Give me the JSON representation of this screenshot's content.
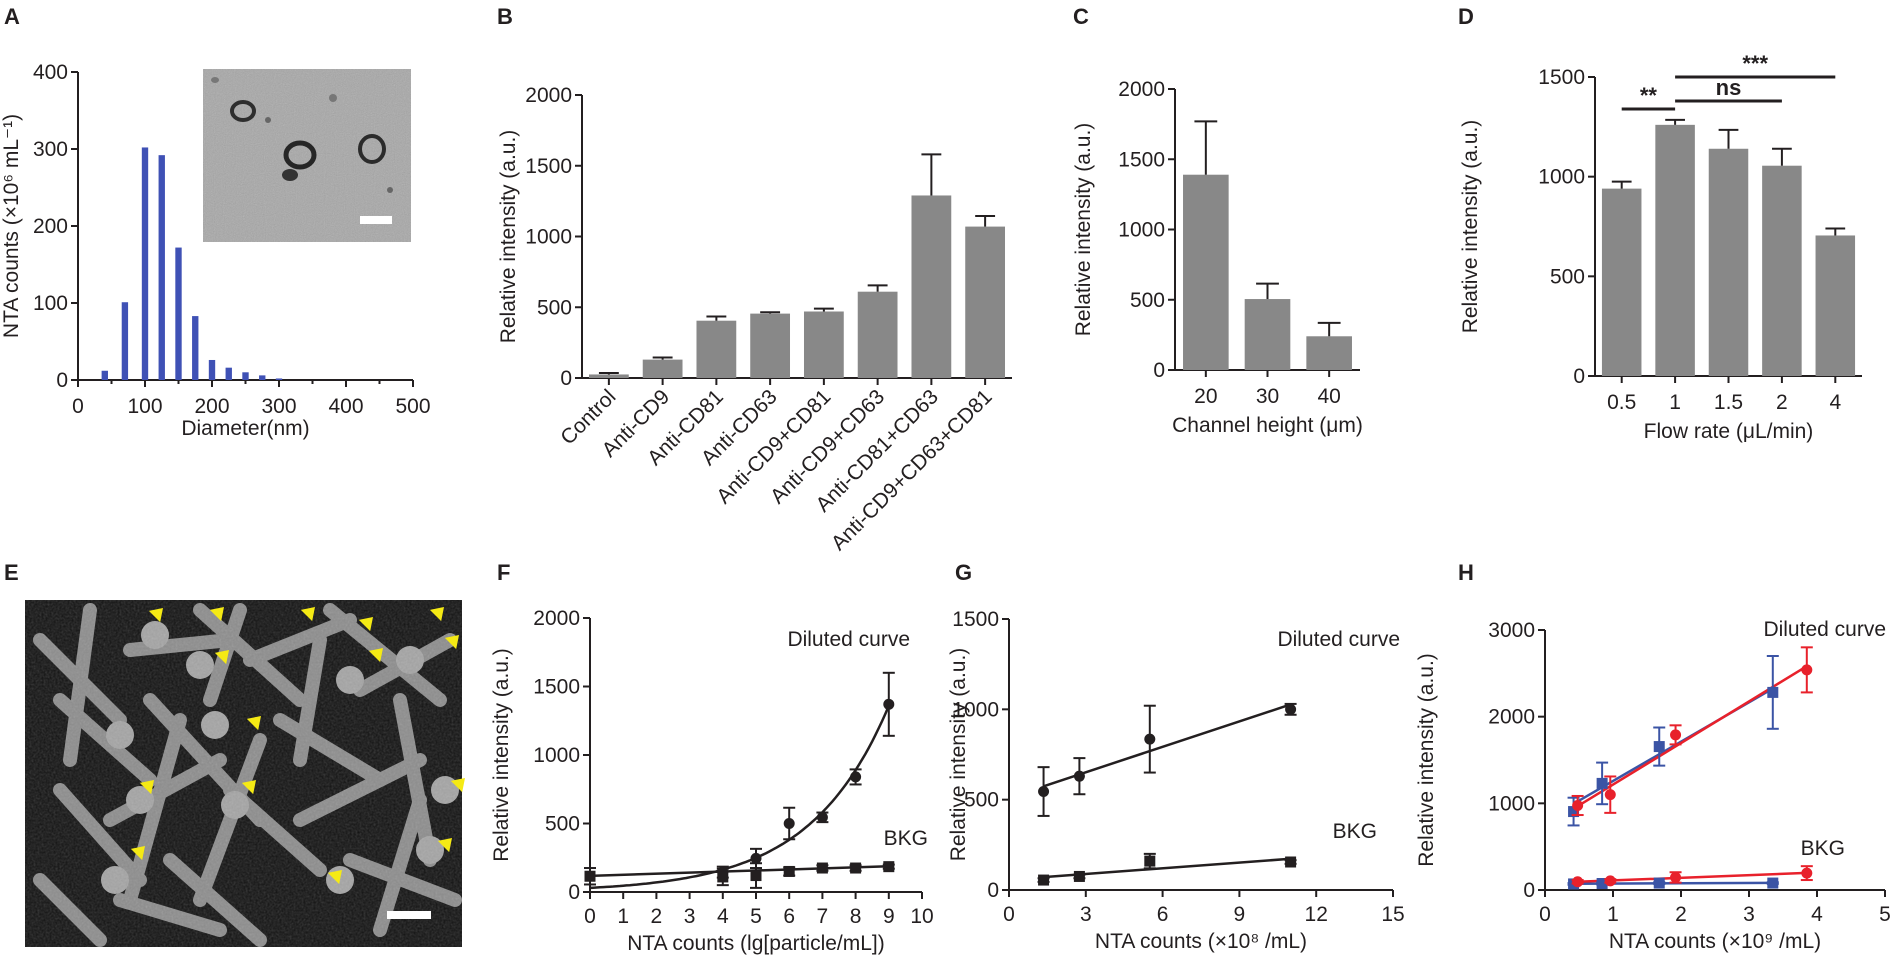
{
  "panel_labels": [
    "A",
    "B",
    "C",
    "D",
    "E",
    "F",
    "G",
    "H"
  ],
  "colors": {
    "blue_bar": "#3f51b5",
    "gray_bar": "#888888",
    "red": "#e8212b",
    "blue": "#3b54a5",
    "black": "#231f20",
    "arrow": "#f5ea14"
  },
  "images": [
    {
      "panel": "A",
      "icon": "tem-exosome-micrograph",
      "scalebar": true
    },
    {
      "panel": "E",
      "icon": "sem-nanowire-micrograph",
      "scalebar": true
    }
  ],
  "chart_data": [
    {
      "panel": "A",
      "type": "bar",
      "xlabel": "Diameter(nm)",
      "ylabel": "NTA counts (×10⁶ mL⁻¹)",
      "xlim": [
        0,
        500
      ],
      "ylim": [
        0,
        400
      ],
      "xticks": [
        "0",
        "100",
        "200",
        "300",
        "400",
        "500"
      ],
      "yticks": [
        "0",
        "100",
        "200",
        "300",
        "400"
      ],
      "x": [
        40,
        70,
        100,
        125,
        150,
        175,
        200,
        225,
        250,
        275,
        300
      ],
      "values": [
        12,
        101,
        302,
        292,
        172,
        83,
        26,
        16,
        10,
        6,
        2
      ]
    },
    {
      "panel": "B",
      "type": "bar",
      "xlabel": "",
      "ylabel": "Relative intensity (a.u.)",
      "ylim": [
        0,
        2000
      ],
      "yticks": [
        "0",
        "500",
        "1000",
        "1500",
        "2000"
      ],
      "categories": [
        "Control",
        "Anti-CD9",
        "Anti-CD81",
        "Anti-CD63",
        "Anti-CD9+CD81",
        "Anti-CD9+CD63",
        "Anti-CD81+CD63",
        "Anti-CD9+CD63+CD81"
      ],
      "values": [
        25,
        130,
        405,
        455,
        470,
        610,
        1290,
        1070
      ],
      "errors": [
        10,
        15,
        30,
        10,
        20,
        45,
        290,
        75
      ]
    },
    {
      "panel": "C",
      "type": "bar",
      "xlabel": "Channel height (μm)",
      "ylabel": "Relative intensity (a.u.)",
      "ylim": [
        0,
        2000
      ],
      "yticks": [
        "0",
        "500",
        "1000",
        "1500",
        "2000"
      ],
      "categories": [
        "20",
        "30",
        "40"
      ],
      "values": [
        1390,
        505,
        240
      ],
      "errors": [
        380,
        110,
        95
      ]
    },
    {
      "panel": "D",
      "type": "bar",
      "xlabel": "Flow rate (μL/min)",
      "ylabel": "Relative intensity (a.u.)",
      "ylim": [
        0,
        1500
      ],
      "yticks": [
        "0",
        "500",
        "1000",
        "1500"
      ],
      "categories": [
        "0.5",
        "1",
        "1.5",
        "2",
        "4"
      ],
      "values": [
        940,
        1260,
        1140,
        1055,
        705
      ],
      "errors": [
        35,
        25,
        95,
        85,
        35
      ],
      "annotations": [
        {
          "text": "**",
          "from": "0.5",
          "to": "1"
        },
        {
          "text": "ns",
          "from": "1",
          "to": "2"
        },
        {
          "text": "***",
          "from": "1",
          "to": "4"
        }
      ]
    },
    {
      "panel": "F",
      "type": "scatter",
      "xlabel": "NTA counts (lg[particle/mL])",
      "ylabel": "Relative intensity (a.u.)",
      "xlim": [
        0,
        10
      ],
      "ylim": [
        0,
        2000
      ],
      "xticks": [
        "0",
        "1",
        "2",
        "3",
        "4",
        "5",
        "6",
        "7",
        "8",
        "9",
        "10"
      ],
      "yticks": [
        "0",
        "500",
        "1000",
        "1500",
        "2000"
      ],
      "annotations": [
        "Diluted curve",
        "BKG"
      ],
      "series": [
        {
          "name": "Diluted curve",
          "x": [
            4,
            5,
            6,
            7,
            8,
            9
          ],
          "y": [
            145,
            245,
            500,
            545,
            840,
            1370
          ],
          "errors": [
            40,
            70,
            115,
            35,
            55,
            230
          ]
        },
        {
          "name": "BKG",
          "x": [
            0,
            4,
            5,
            6,
            7,
            8,
            9
          ],
          "y": [
            115,
            110,
            120,
            150,
            175,
            175,
            185
          ],
          "errors": [
            60,
            60,
            90,
            30,
            20,
            20,
            15
          ]
        }
      ]
    },
    {
      "panel": "G",
      "type": "scatter",
      "xlabel": "NTA counts (×10⁸ /mL)",
      "ylabel": "Relative intensity (a.u.)",
      "xlim": [
        0,
        15
      ],
      "ylim": [
        0,
        1500
      ],
      "xticks": [
        "0",
        "3",
        "6",
        "9",
        "12",
        "15"
      ],
      "yticks": [
        "0",
        "500",
        "1000",
        "1500"
      ],
      "annotations": [
        "Diluted curve",
        "BKG"
      ],
      "series": [
        {
          "name": "Diluted curve",
          "x": [
            1.35,
            2.75,
            5.5,
            11
          ],
          "y": [
            545,
            630,
            835,
            1000
          ],
          "errors": [
            135,
            100,
            185,
            30
          ]
        },
        {
          "name": "BKG",
          "x": [
            1.35,
            2.75,
            5.5,
            11
          ],
          "y": [
            55,
            75,
            160,
            155
          ],
          "errors": [
            10,
            10,
            40,
            10
          ]
        }
      ]
    },
    {
      "panel": "H",
      "type": "scatter",
      "xlabel": "NTA counts (×10⁹ /mL)",
      "ylabel": "Relative intensity (a.u.)",
      "xlim": [
        0,
        5
      ],
      "ylim": [
        0,
        3000
      ],
      "xticks": [
        "0",
        "1",
        "2",
        "3",
        "4",
        "5"
      ],
      "yticks": [
        "0",
        "1000",
        "2000",
        "3000"
      ],
      "annotations": [
        "Diluted curve",
        "BKG"
      ],
      "series": [
        {
          "name": "Diluted curve (red)",
          "color": "#e8212b",
          "x": [
            0.48,
            0.96,
            1.92,
            3.85
          ],
          "y": [
            975,
            1100,
            1790,
            2540
          ],
          "errors": [
            110,
            210,
            110,
            260
          ]
        },
        {
          "name": "Diluted curve (blue)",
          "color": "#3b54a5",
          "x": [
            0.42,
            0.84,
            1.68,
            3.35
          ],
          "y": [
            905,
            1230,
            1655,
            2280
          ],
          "errors": [
            160,
            240,
            220,
            420
          ]
        },
        {
          "name": "BKG (red)",
          "color": "#e8212b",
          "x": [
            0.48,
            0.96,
            1.92,
            3.85
          ],
          "y": [
            95,
            105,
            145,
            195
          ],
          "errors": [
            20,
            20,
            60,
            80
          ]
        },
        {
          "name": "BKG (blue)",
          "color": "#3b54a5",
          "x": [
            0.42,
            0.84,
            1.68,
            3.35
          ],
          "y": [
            70,
            75,
            80,
            80
          ],
          "errors": [
            10,
            10,
            10,
            10
          ]
        }
      ]
    }
  ]
}
